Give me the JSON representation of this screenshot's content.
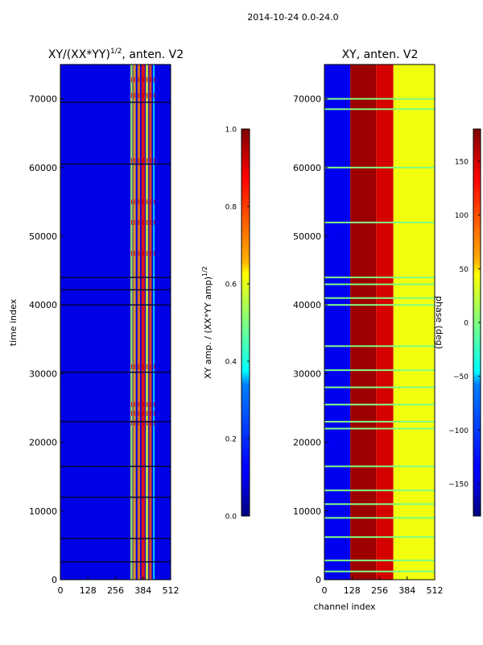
{
  "figure": {
    "suptitle": "2014-10-24 0.0-24.0",
    "shared_xlabel": "channel index"
  },
  "chart_data": [
    {
      "type": "heatmap",
      "title_main": "XY/(XX*YY)",
      "title_exp": "1/2",
      "title_tail": ", anten. V2",
      "xlabel": "",
      "ylabel": "time index",
      "xlim": [
        0,
        512
      ],
      "ylim": [
        0,
        75000
      ],
      "xticks": [
        0,
        128,
        256,
        384,
        512
      ],
      "yticks": [
        0,
        10000,
        20000,
        30000,
        40000,
        50000,
        60000,
        70000
      ],
      "colormap": "jet",
      "background_value": 0.1,
      "bands": [
        {
          "x0": 325,
          "x1": 335,
          "value": 0.55
        },
        {
          "x0": 338,
          "x1": 350,
          "value": 0.7
        },
        {
          "x0": 358,
          "x1": 370,
          "value": 0.75
        },
        {
          "x0": 376,
          "x1": 392,
          "value": 0.85
        },
        {
          "x0": 396,
          "x1": 408,
          "value": 0.6
        },
        {
          "x0": 412,
          "x1": 424,
          "value": 0.8
        },
        {
          "x0": 430,
          "x1": 438,
          "value": 0.35
        }
      ],
      "hot_rows": [
        72800,
        70500,
        61000,
        55000,
        52000,
        47500,
        31000,
        25500,
        24200,
        22800
      ],
      "gap_rows": [
        69500,
        60500,
        44000,
        42200,
        40000,
        30200,
        23000,
        16500,
        12000,
        6000,
        2600
      ],
      "colorbar": {
        "label_main": "XY amp. / (XX*YY amp)",
        "label_exp": "1/2",
        "ticks": [
          "0.0",
          "0.2",
          "0.4",
          "0.6",
          "0.8",
          "1.0"
        ],
        "tick_values": [
          0.0,
          0.2,
          0.4,
          0.6,
          0.8,
          1.0
        ],
        "range": [
          0.0,
          1.0
        ]
      }
    },
    {
      "type": "heatmap",
      "title_main": "XY, anten. V2",
      "xlabel": "channel index",
      "ylabel": "",
      "xlim": [
        0,
        512
      ],
      "ylim": [
        0,
        75000
      ],
      "xticks": [
        0,
        128,
        256,
        384,
        512
      ],
      "yticks": [
        0,
        10000,
        20000,
        30000,
        40000,
        50000,
        60000,
        70000
      ],
      "colormap": "jet",
      "regions": [
        {
          "x0": 0,
          "x1": 120,
          "value": -140
        },
        {
          "x0": 120,
          "x1": 240,
          "value": 170
        },
        {
          "x0": 240,
          "x1": 320,
          "value": 150
        },
        {
          "x0": 320,
          "x1": 512,
          "value": 40
        }
      ],
      "stripe_rows": [
        70000,
        68500,
        60000,
        52000,
        44000,
        43000,
        41000,
        40000,
        34000,
        30500,
        28000,
        25500,
        23000,
        22000,
        16500,
        13000,
        11000,
        9000,
        6200,
        2800,
        1200
      ],
      "stripe_value": 0,
      "colorbar": {
        "label_main": "phase (deg)",
        "ticks": [
          "−150",
          "−100",
          "−50",
          "0",
          "50",
          "100",
          "150"
        ],
        "tick_values": [
          -150,
          -100,
          -50,
          0,
          50,
          100,
          150
        ],
        "range": [
          -180,
          180
        ]
      }
    }
  ]
}
